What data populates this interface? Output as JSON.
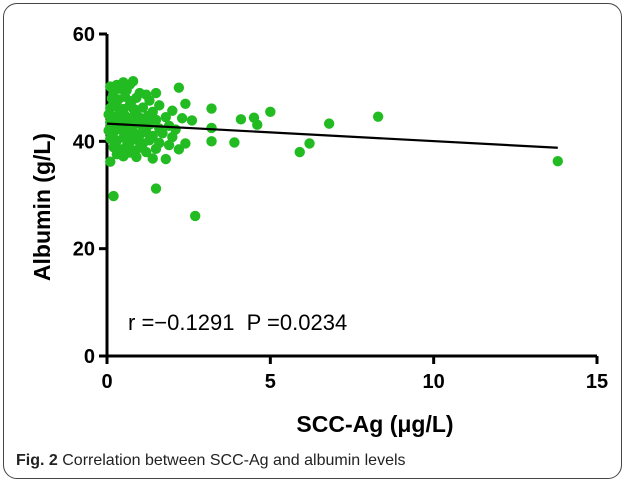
{
  "figure": {
    "label": "Fig. 2",
    "caption": "Correlation between SCC-Ag and albumin levels"
  },
  "colors": {
    "points": "#22bb22",
    "axis": "#000000",
    "trend": "#000000"
  },
  "chart_data": {
    "type": "scatter",
    "xlabel": "SCC-Ag (μg/L)",
    "ylabel": "Albumin (g/L)",
    "xlim": [
      0,
      15
    ],
    "ylim": [
      0,
      60
    ],
    "xticks": [
      0,
      5,
      10,
      15
    ],
    "yticks": [
      0,
      20,
      40,
      60
    ],
    "grid": false,
    "legend": "none",
    "annotation": "r =−0.1291  P =0.0234",
    "trendline": {
      "x": [
        0,
        13.8
      ],
      "y": [
        43.3,
        38.8
      ]
    },
    "series": [
      {
        "points": [
          [
            0.1,
            50.2
          ],
          [
            0.3,
            50.5
          ],
          [
            0.5,
            51.0
          ],
          [
            0.7,
            50.6
          ],
          [
            0.8,
            51.2
          ],
          [
            0.2,
            49.3
          ],
          [
            0.4,
            49.8
          ],
          [
            0.6,
            49.5
          ],
          [
            1.0,
            49.0
          ],
          [
            1.2,
            48.7
          ],
          [
            1.5,
            49.0
          ],
          [
            2.2,
            50.0
          ],
          [
            0.15,
            48.0
          ],
          [
            0.35,
            47.8
          ],
          [
            0.55,
            48.3
          ],
          [
            0.75,
            47.5
          ],
          [
            0.9,
            48.1
          ],
          [
            1.3,
            47.6
          ],
          [
            2.4,
            47.0
          ],
          [
            0.1,
            46.2
          ],
          [
            0.3,
            46.5
          ],
          [
            0.5,
            46.0
          ],
          [
            0.7,
            46.8
          ],
          [
            0.9,
            45.8
          ],
          [
            1.1,
            46.3
          ],
          [
            1.4,
            45.5
          ],
          [
            1.6,
            46.7
          ],
          [
            2.0,
            45.7
          ],
          [
            3.2,
            46.1
          ],
          [
            5.0,
            45.5
          ],
          [
            0.05,
            45.0
          ],
          [
            0.25,
            44.6
          ],
          [
            0.45,
            45.2
          ],
          [
            0.65,
            44.3
          ],
          [
            0.85,
            44.9
          ],
          [
            1.05,
            44.1
          ],
          [
            1.25,
            44.7
          ],
          [
            1.5,
            44.0
          ],
          [
            1.8,
            44.5
          ],
          [
            2.3,
            44.3
          ],
          [
            2.6,
            43.9
          ],
          [
            4.1,
            44.1
          ],
          [
            4.5,
            44.4
          ],
          [
            0.1,
            43.5
          ],
          [
            0.3,
            43.0
          ],
          [
            0.5,
            43.8
          ],
          [
            0.7,
            42.8
          ],
          [
            0.9,
            43.4
          ],
          [
            1.1,
            42.6
          ],
          [
            1.3,
            43.1
          ],
          [
            1.6,
            42.4
          ],
          [
            1.9,
            42.9
          ],
          [
            2.1,
            42.2
          ],
          [
            4.6,
            43.1
          ],
          [
            6.8,
            43.3
          ],
          [
            8.3,
            44.6
          ],
          [
            0.05,
            42.0
          ],
          [
            0.2,
            41.6
          ],
          [
            0.4,
            42.3
          ],
          [
            0.6,
            41.4
          ],
          [
            0.8,
            41.9
          ],
          [
            1.0,
            41.2
          ],
          [
            1.2,
            41.7
          ],
          [
            1.4,
            41.0
          ],
          [
            1.7,
            41.5
          ],
          [
            2.0,
            40.8
          ],
          [
            3.2,
            42.5
          ],
          [
            0.1,
            40.5
          ],
          [
            0.3,
            40.1
          ],
          [
            0.5,
            40.7
          ],
          [
            0.7,
            39.9
          ],
          [
            0.9,
            40.3
          ],
          [
            1.1,
            39.6
          ],
          [
            1.3,
            40.2
          ],
          [
            1.6,
            39.7
          ],
          [
            1.9,
            39.3
          ],
          [
            2.4,
            39.6
          ],
          [
            3.2,
            40.0
          ],
          [
            3.9,
            39.8
          ],
          [
            0.2,
            38.9
          ],
          [
            0.4,
            38.5
          ],
          [
            0.6,
            39.1
          ],
          [
            0.8,
            38.3
          ],
          [
            1.0,
            38.8
          ],
          [
            1.2,
            38.0
          ],
          [
            1.5,
            38.6
          ],
          [
            2.2,
            38.5
          ],
          [
            6.2,
            39.6
          ],
          [
            5.9,
            38.0
          ],
          [
            0.3,
            37.6
          ],
          [
            0.5,
            37.2
          ],
          [
            0.7,
            37.9
          ],
          [
            0.9,
            37.1
          ],
          [
            1.4,
            36.8
          ],
          [
            1.8,
            36.7
          ],
          [
            0.1,
            36.2
          ],
          [
            0.15,
            44.0
          ],
          [
            0.35,
            42.6
          ],
          [
            0.55,
            44.8
          ],
          [
            0.75,
            40.9
          ],
          [
            0.2,
            47.0
          ],
          [
            0.4,
            45.6
          ],
          [
            0.6,
            43.3
          ],
          [
            0.8,
            46.1
          ],
          [
            1.0,
            44.4
          ],
          [
            13.8,
            36.3
          ],
          [
            1.5,
            31.2
          ],
          [
            0.2,
            29.8
          ],
          [
            2.7,
            26.1
          ]
        ]
      }
    ]
  }
}
